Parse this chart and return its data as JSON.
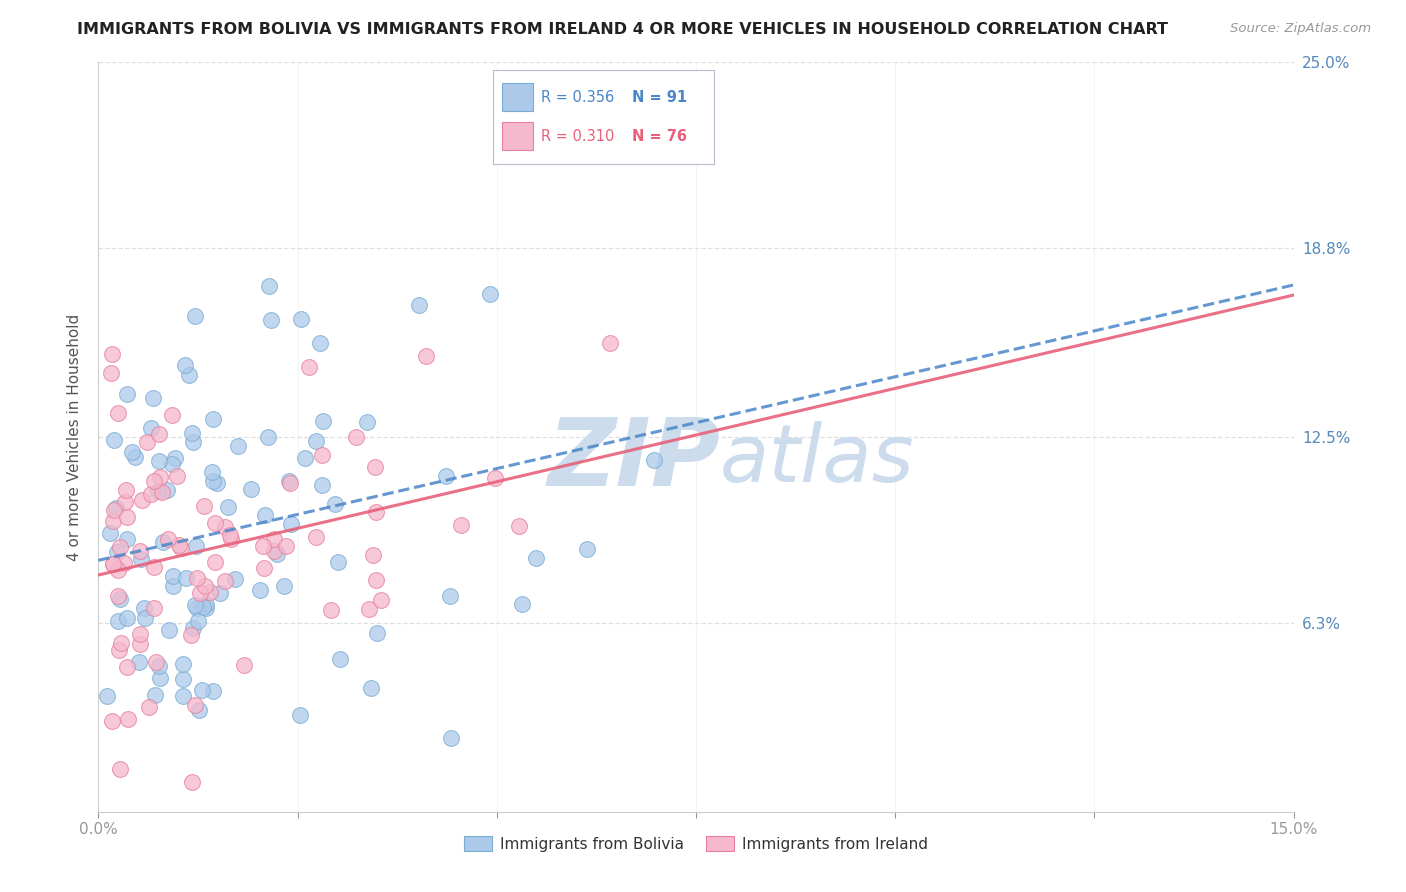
{
  "title": "IMMIGRANTS FROM BOLIVIA VS IMMIGRANTS FROM IRELAND 4 OR MORE VEHICLES IN HOUSEHOLD CORRELATION CHART",
  "source": "Source: ZipAtlas.com",
  "ylabel": "4 or more Vehicles in Household",
  "xlim": [
    0.0,
    0.15
  ],
  "ylim": [
    0.0,
    0.25
  ],
  "ytick_positions": [
    0.063,
    0.125,
    0.188,
    0.25
  ],
  "ytick_labels": [
    "6.3%",
    "12.5%",
    "18.8%",
    "25.0%"
  ],
  "bolivia_R": 0.356,
  "bolivia_N": 91,
  "ireland_R": 0.31,
  "ireland_N": 76,
  "bolivia_color": "#adc9ea",
  "bolivia_edge_color": "#7aadd4",
  "ireland_color": "#f5b8cc",
  "ireland_edge_color": "#e8809c",
  "bolivia_line_color": "#4a86c8",
  "ireland_line_color": "#e8607a",
  "watermark_zip": "ZIP",
  "watermark_atlas": "atlas",
  "watermark_color": "#ccdcec",
  "background_color": "#ffffff",
  "grid_color": "#d8d8d8",
  "label_color": "#5588bb",
  "tick_color": "#999999",
  "bolivia_label": "Immigrants from Bolivia",
  "ireland_label": "Immigrants from Ireland",
  "bottom_label_color": "#333333"
}
